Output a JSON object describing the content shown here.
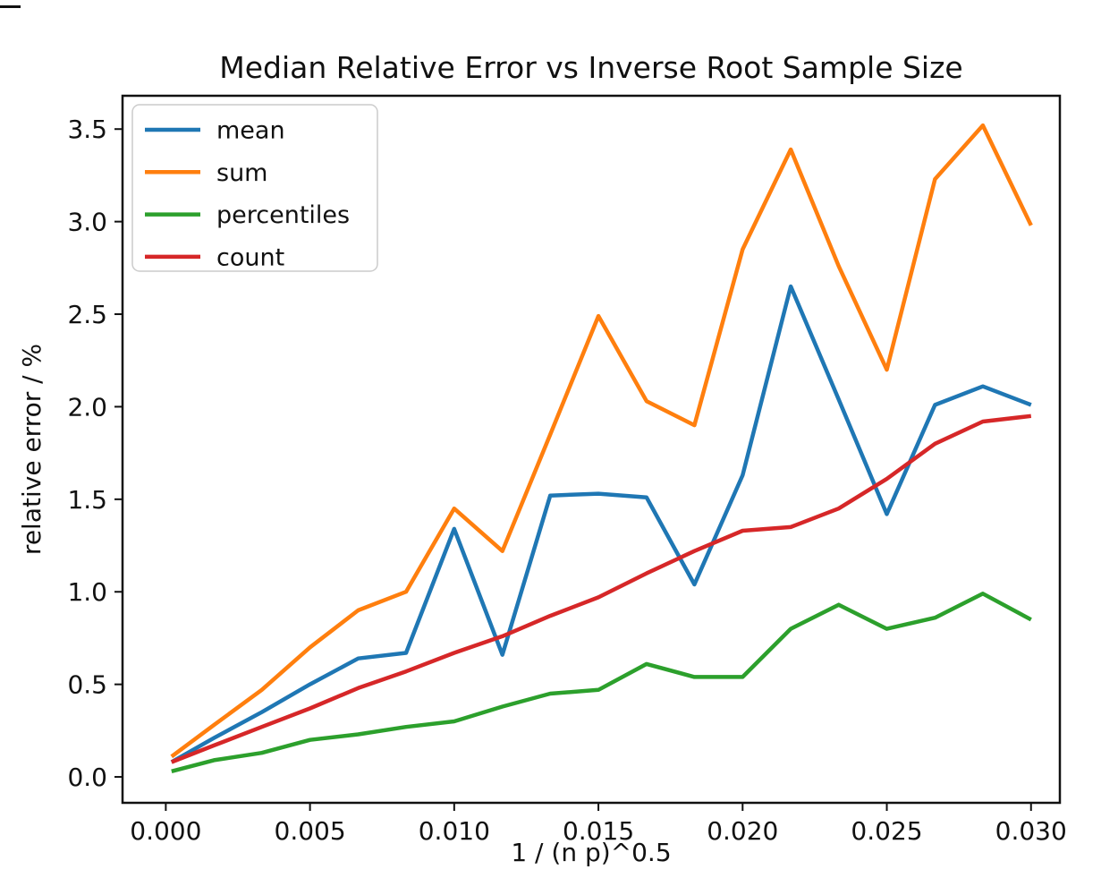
{
  "chart_data": {
    "type": "line",
    "title": "Median Relative Error vs Inverse Root Sample Size",
    "xlabel": "1 / (n p)^0.5",
    "ylabel": "relative error / %",
    "grid": false,
    "legend_position": "upper-left",
    "xlim": [
      -0.0015,
      0.031
    ],
    "ylim": [
      -0.14,
      3.68
    ],
    "xticks": [
      {
        "value": 0.0,
        "label": "0.000"
      },
      {
        "value": 0.005,
        "label": "0.005"
      },
      {
        "value": 0.01,
        "label": "0.010"
      },
      {
        "value": 0.015,
        "label": "0.015"
      },
      {
        "value": 0.02,
        "label": "0.020"
      },
      {
        "value": 0.025,
        "label": "0.025"
      },
      {
        "value": 0.03,
        "label": "0.030"
      }
    ],
    "yticks": [
      {
        "value": 0.0,
        "label": "0.0"
      },
      {
        "value": 0.5,
        "label": "0.5"
      },
      {
        "value": 1.0,
        "label": "1.0"
      },
      {
        "value": 1.5,
        "label": "1.5"
      },
      {
        "value": 2.0,
        "label": "2.0"
      },
      {
        "value": 2.5,
        "label": "2.5"
      },
      {
        "value": 3.0,
        "label": "3.0"
      },
      {
        "value": 3.5,
        "label": "3.5"
      }
    ],
    "x": [
      0.0002,
      0.00167,
      0.00333,
      0.005,
      0.00667,
      0.00833,
      0.01,
      0.01167,
      0.01333,
      0.015,
      0.01667,
      0.01833,
      0.02,
      0.02167,
      0.02333,
      0.025,
      0.02667,
      0.02833,
      0.03
    ],
    "series": [
      {
        "name": "mean",
        "color": "#1f77b4",
        "values": [
          0.08,
          0.21,
          0.35,
          0.5,
          0.64,
          0.67,
          1.34,
          0.66,
          1.52,
          1.53,
          1.51,
          1.04,
          1.63,
          2.65,
          2.04,
          1.42,
          2.01,
          2.11,
          2.01
        ]
      },
      {
        "name": "sum",
        "color": "#ff7f0e",
        "values": [
          0.11,
          0.28,
          0.47,
          0.7,
          0.9,
          1.0,
          1.45,
          1.22,
          1.85,
          2.49,
          2.03,
          1.9,
          2.85,
          3.39,
          2.76,
          2.2,
          3.23,
          3.52,
          2.98
        ]
      },
      {
        "name": "percentiles",
        "color": "#2ca02c",
        "values": [
          0.03,
          0.09,
          0.13,
          0.2,
          0.23,
          0.27,
          0.3,
          0.38,
          0.45,
          0.47,
          0.61,
          0.54,
          0.54,
          0.8,
          0.93,
          0.8,
          0.86,
          0.99,
          0.85
        ]
      },
      {
        "name": "count",
        "color": "#d62728",
        "values": [
          0.08,
          0.17,
          0.27,
          0.37,
          0.48,
          0.57,
          0.67,
          0.76,
          0.87,
          0.97,
          1.1,
          1.22,
          1.33,
          1.35,
          1.45,
          1.61,
          1.8,
          1.92,
          1.95
        ]
      }
    ]
  }
}
